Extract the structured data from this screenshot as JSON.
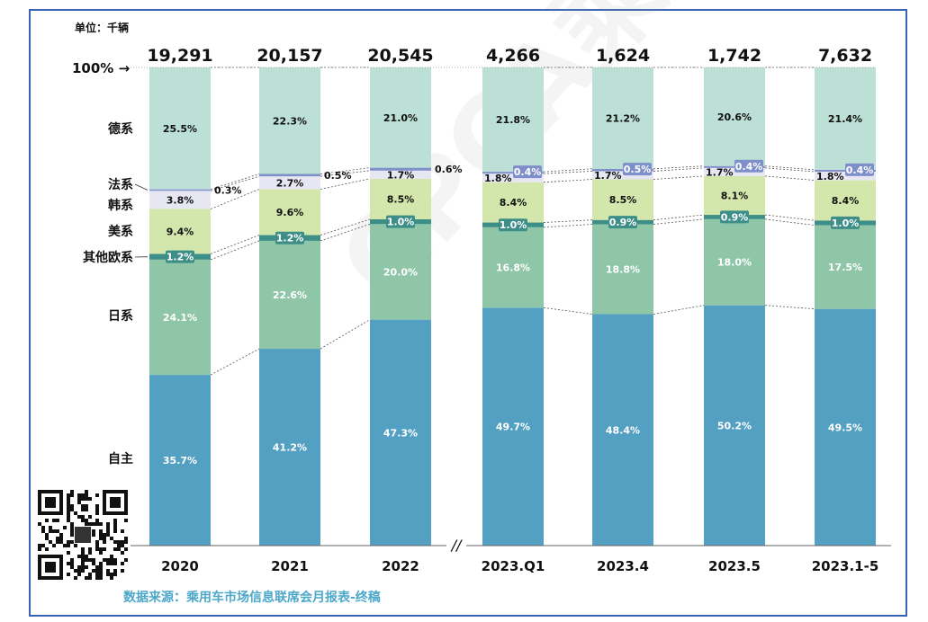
{
  "unit_label": "单位：千辆",
  "source_label": "数据来源：乘用车市场信息联席会月报表-终稿",
  "watermark_text": "CPCA乘联会",
  "pct_marker": "100% →",
  "axis_break_mark": "//",
  "colors": {
    "zizhu": "#54a0c3",
    "rixi": "#8fc6a7",
    "qita": "#3e8e88",
    "meixi": "#d3e6ab",
    "hanxi": "#e6e7f2",
    "faxi": "#7f8fca",
    "dexi": "#bcdfd6"
  },
  "chart_data": {
    "type": "bar",
    "stacked": true,
    "normalized": true,
    "categories": [
      "2020",
      "2021",
      "2022",
      "2023.Q1",
      "2023.4",
      "2023.5",
      "2023.1-5"
    ],
    "totals": [
      "19,291",
      "20,157",
      "20,545",
      "4,266",
      "1,624",
      "1,742",
      "7,632"
    ],
    "ylim": [
      0,
      100
    ],
    "series": [
      {
        "key": "zizhu",
        "name": "自主",
        "values": [
          35.7,
          41.2,
          47.3,
          49.7,
          48.4,
          50.2,
          49.5
        ]
      },
      {
        "key": "rixi",
        "name": "日系",
        "values": [
          24.1,
          22.6,
          20.0,
          16.8,
          18.8,
          18.0,
          17.5
        ]
      },
      {
        "key": "qita",
        "name": "其他欧系",
        "values": [
          1.2,
          1.2,
          1.0,
          1.0,
          0.9,
          0.9,
          1.0
        ]
      },
      {
        "key": "meixi",
        "name": "美系",
        "values": [
          9.4,
          9.6,
          8.5,
          8.4,
          8.5,
          8.1,
          8.4
        ]
      },
      {
        "key": "hanxi",
        "name": "韩系",
        "values": [
          3.8,
          2.7,
          1.7,
          1.8,
          1.7,
          1.7,
          1.8
        ]
      },
      {
        "key": "faxi",
        "name": "法系",
        "values": [
          0.3,
          0.5,
          0.6,
          0.4,
          0.5,
          0.4,
          0.4
        ]
      },
      {
        "key": "dexi",
        "name": "德系",
        "values": [
          25.5,
          22.3,
          21.0,
          21.8,
          21.2,
          20.6,
          21.4
        ]
      }
    ]
  }
}
